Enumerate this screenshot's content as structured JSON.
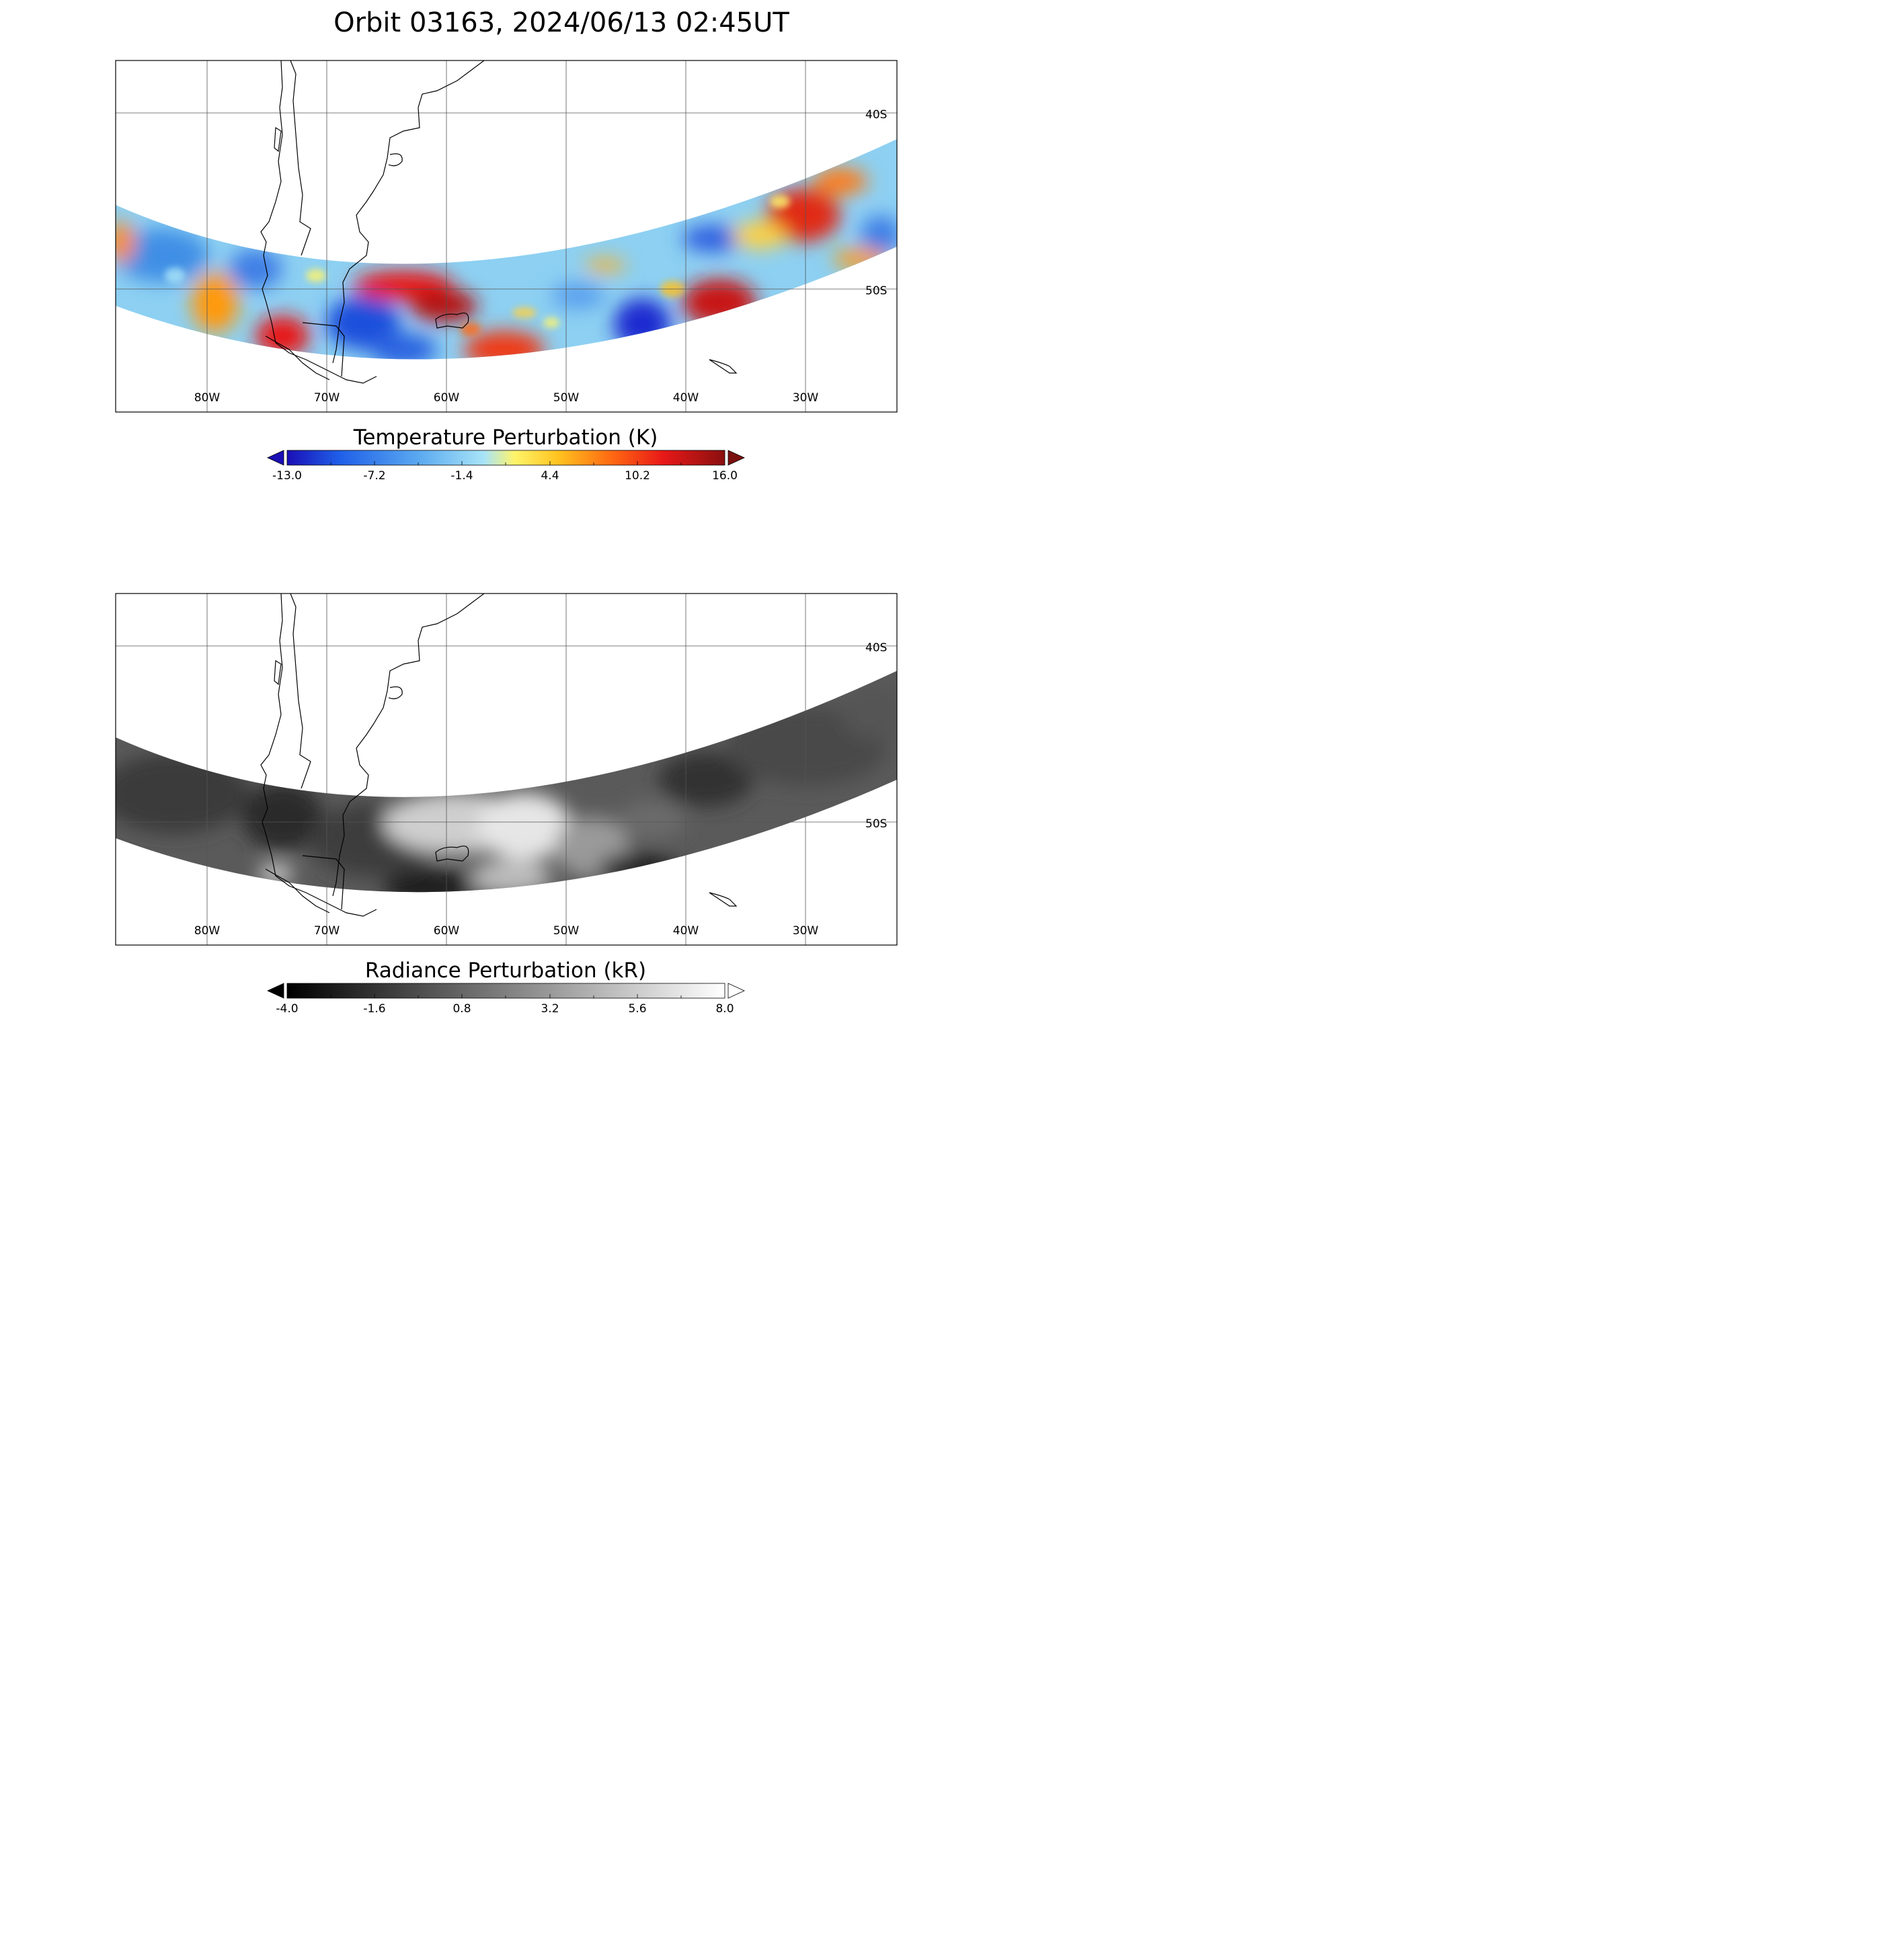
{
  "title": "Orbit 03163, 2024/06/13 02:45UT",
  "panels": [
    {
      "id": "temperature",
      "colorbar": {
        "label": "Temperature Perturbation (K)",
        "ticks": [
          "-13.0",
          "-7.2",
          "-1.4",
          "4.4",
          "10.2",
          "16.0"
        ],
        "colormap": "blue-white-yellow-red",
        "colors": [
          "#1a0fb5",
          "#1f5fe8",
          "#5aa9f0",
          "#a8e4f8",
          "#fff46a",
          "#ffc21f",
          "#ff6a12",
          "#e81818",
          "#8a0f0f"
        ],
        "under_color": "#1a0fb5",
        "over_color": "#7a1010"
      },
      "lon_labels": [
        "80W",
        "70W",
        "60W",
        "50W",
        "40W",
        "30W"
      ],
      "lat_labels": [
        "40S",
        "50S"
      ]
    },
    {
      "id": "radiance",
      "colorbar": {
        "label": "Radiance Perturbation (kR)",
        "ticks": [
          "-4.0",
          "-1.6",
          "0.8",
          "3.2",
          "5.6",
          "8.0"
        ],
        "colormap": "grayscale",
        "colors": [
          "#000000",
          "#ffffff"
        ],
        "under_color": "#000000",
        "over_color": "#ffffff"
      },
      "lon_labels": [
        "80W",
        "70W",
        "60W",
        "50W",
        "40W",
        "30W"
      ],
      "lat_labels": [
        "40S",
        "50S"
      ]
    }
  ]
}
